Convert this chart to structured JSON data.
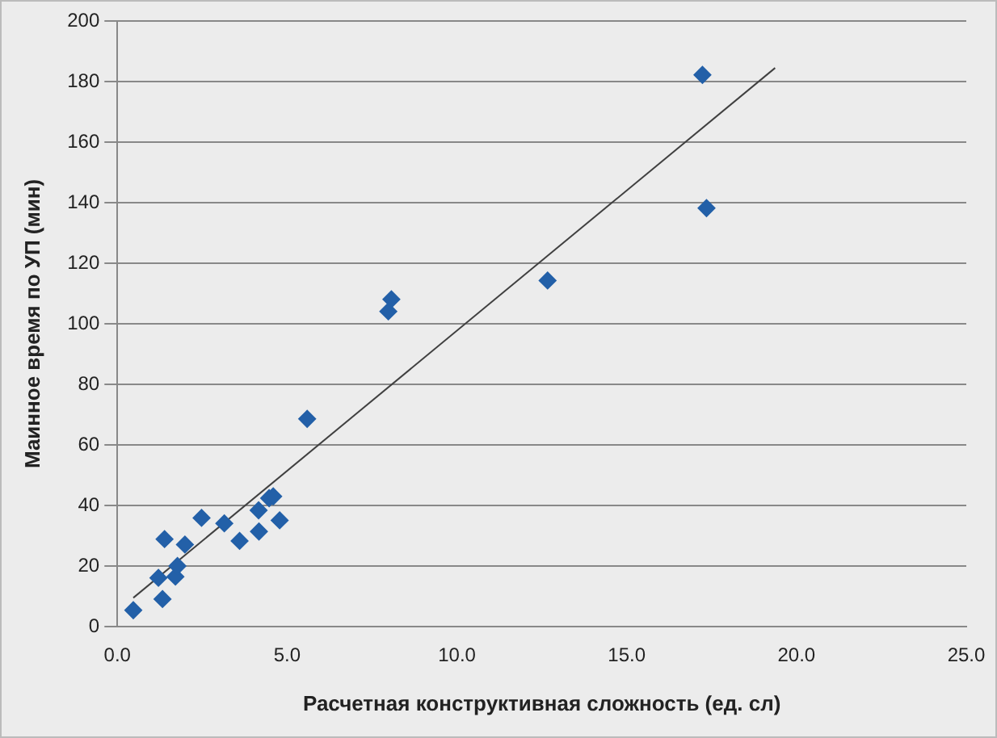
{
  "chart_data": {
    "type": "scatter",
    "xlabel": "Расчетная конструктивная сложность (ед. сл)",
    "ylabel": "Маинное время по УП (мин)",
    "xlim": [
      0,
      25
    ],
    "xticks": [
      {
        "value": 0,
        "label": "0.0"
      },
      {
        "value": 5,
        "label": "5.0"
      },
      {
        "value": 10,
        "label": "10.0"
      },
      {
        "value": 15,
        "label": "15.0"
      },
      {
        "value": 20,
        "label": "20.0"
      },
      {
        "value": 25,
        "label": "25.0"
      }
    ],
    "ylim": [
      0,
      200
    ],
    "yticks": [
      0,
      20,
      40,
      60,
      80,
      100,
      120,
      140,
      160,
      180,
      200
    ],
    "grid": "y",
    "legend": false,
    "marker": "diamond",
    "series": [
      {
        "color": "#2360a8",
        "x": [
          0.47,
          1.33,
          1.21,
          1.71,
          1.77,
          1.39,
          1.99,
          2.48,
          3.15,
          3.6,
          4.16,
          4.17,
          4.47,
          4.59,
          4.78,
          5.59,
          7.98,
          8.07,
          12.67,
          17.23,
          17.35
        ],
        "values": [
          5.4,
          9.1,
          16.1,
          16.5,
          20,
          28.9,
          27.1,
          35.9,
          34.1,
          28.3,
          38.4,
          31.4,
          42.4,
          43,
          35.1,
          68.6,
          104.1,
          108.1,
          114.3,
          182.2,
          138.2
        ]
      },
      {
        "type": "line",
        "color": "#404040",
        "marker": "none",
        "x": [
          0.47,
          19.37
        ],
        "values": [
          9.5,
          184.5
        ]
      }
    ]
  }
}
